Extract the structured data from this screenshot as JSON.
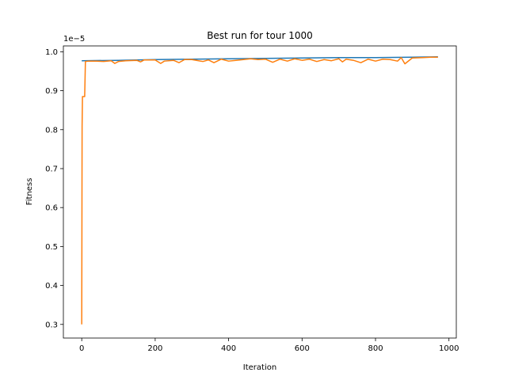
{
  "chart_data": {
    "type": "line",
    "title": "Best run for tour 1000",
    "xlabel": "Iteration",
    "ylabel": "Fitness",
    "offset_label": "1e−5",
    "xlim": [
      -50,
      1020
    ],
    "ylim": [
      0.265,
      1.015
    ],
    "x_ticks": [
      0,
      200,
      400,
      600,
      800,
      1000
    ],
    "y_ticks": [
      0.3,
      0.4,
      0.5,
      0.6,
      0.7,
      0.8,
      0.9,
      1.0
    ],
    "y_tick_labels": [
      "0.3",
      "0.4",
      "0.5",
      "0.6",
      "0.7",
      "0.8",
      "0.9",
      "1.0"
    ],
    "grid": false,
    "legend": "none",
    "series": [
      {
        "color": "#1f77b4",
        "x": [
          0,
          100,
          200,
          300,
          400,
          500,
          600,
          700,
          800,
          900,
          970
        ],
        "y": [
          0.977,
          0.978,
          0.98,
          0.981,
          0.982,
          0.983,
          0.984,
          0.985,
          0.985,
          0.986,
          0.987
        ]
      },
      {
        "color": "#ff7f0e",
        "x": [
          0,
          1,
          2,
          5,
          8,
          10,
          20,
          40,
          60,
          80,
          90,
          100,
          120,
          150,
          160,
          170,
          200,
          215,
          225,
          250,
          265,
          280,
          300,
          330,
          345,
          360,
          380,
          400,
          420,
          440,
          460,
          480,
          500,
          520,
          540,
          560,
          580,
          600,
          620,
          640,
          660,
          680,
          700,
          710,
          720,
          740,
          760,
          780,
          800,
          820,
          840,
          860,
          870,
          880,
          900,
          930,
          950,
          970
        ],
        "y": [
          0.3,
          0.81,
          0.885,
          0.885,
          0.885,
          0.975,
          0.976,
          0.976,
          0.975,
          0.977,
          0.97,
          0.975,
          0.977,
          0.978,
          0.974,
          0.979,
          0.979,
          0.97,
          0.976,
          0.978,
          0.972,
          0.98,
          0.98,
          0.975,
          0.979,
          0.972,
          0.981,
          0.976,
          0.978,
          0.98,
          0.982,
          0.98,
          0.981,
          0.973,
          0.981,
          0.976,
          0.982,
          0.978,
          0.981,
          0.975,
          0.98,
          0.977,
          0.982,
          0.974,
          0.981,
          0.978,
          0.972,
          0.981,
          0.976,
          0.981,
          0.98,
          0.976,
          0.985,
          0.969,
          0.984,
          0.985,
          0.986,
          0.986
        ]
      }
    ]
  }
}
